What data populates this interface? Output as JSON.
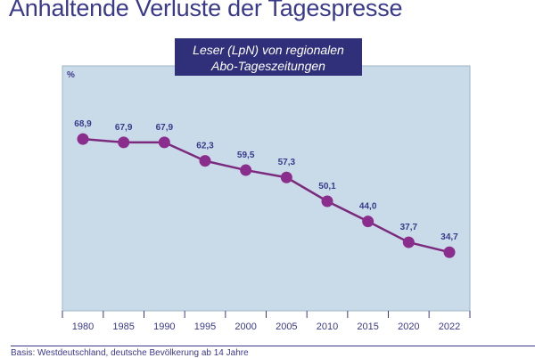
{
  "page": {
    "title": "Anhaltende Verluste der Tagespresse",
    "subtitle_line1": "Leser (LpN) von regionalen",
    "subtitle_line2": "Abo-Tageszeitungen",
    "footnote": "Basis: Westdeutschland, deutsche Bevölkerung ab 14 Jahre"
  },
  "colors": {
    "plot_background": "#c9dbe8",
    "plot_border": "#9eb4c6",
    "line": "#7b2a7e",
    "marker": "#8b2d8c",
    "label": "#3a3a8c",
    "title_box": "#2f2f7a"
  },
  "chart_data": {
    "type": "line",
    "title": "Leser (LpN) von regionalen Abo-Tageszeitungen",
    "ylabel": "%",
    "xlabel": "",
    "categories": [
      "1980",
      "1985",
      "1990",
      "1995",
      "2000",
      "2005",
      "2010",
      "2015",
      "2020",
      "2022"
    ],
    "data_labels": [
      "68,9",
      "67,9",
      "67,9",
      "62,3",
      "59,5",
      "57,3",
      "50,1",
      "44,0",
      "37,7",
      "34,7"
    ],
    "series": [
      {
        "values": [
          68.9,
          67.9,
          67.9,
          62.3,
          59.5,
          57.3,
          50.1,
          44.0,
          37.7,
          34.7
        ]
      }
    ],
    "ylim": [
      17,
      91
    ],
    "grid": false,
    "legend": "none"
  }
}
